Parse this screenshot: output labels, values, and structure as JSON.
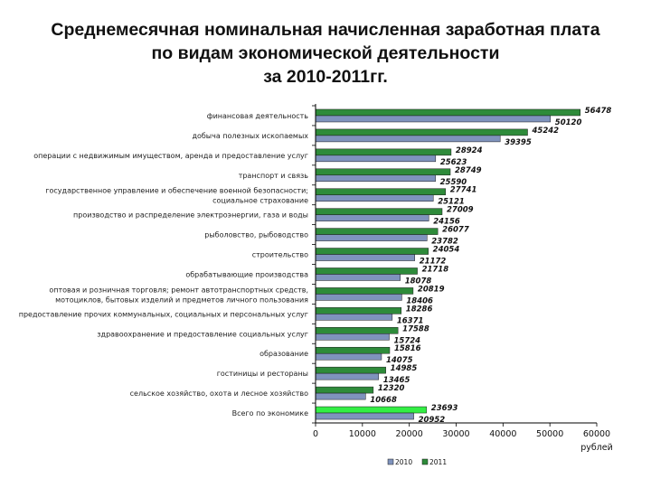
{
  "title_lines": [
    "Среднемесячная номинальная начисленная заработная плата",
    "по видам экономической деятельности",
    "за 2010-2011гг."
  ],
  "chart_data": {
    "type": "bar",
    "orientation": "horizontal",
    "categories": [
      [
        "финансовая деятельность"
      ],
      [
        "добыча полезных ископаемых"
      ],
      [
        "операции с недвижимым имуществом, аренда и предоставление услуг"
      ],
      [
        "транспорт и связь"
      ],
      [
        "государственное управление и обеспечение военной безопасности;",
        "социальное страхование"
      ],
      [
        "производство и распределение электроэнергии, газа и воды"
      ],
      [
        "рыболовство, рыбоводство"
      ],
      [
        "строительство"
      ],
      [
        "обрабатывающие производства"
      ],
      [
        "оптовая и розничная торговля; ремонт автотранспортных средств,",
        "мотоциклов, бытовых изделий и предметов личного пользования"
      ],
      [
        "предоставление прочих коммунальных, социальных и персональных услуг"
      ],
      [
        "здравоохранение и предоставление социальных услуг"
      ],
      [
        "образование"
      ],
      [
        "гостиницы и рестораны"
      ],
      [
        "сельское хозяйство, охота и лесное хозяйство"
      ],
      [
        "Всего по экономике"
      ]
    ],
    "series": [
      {
        "name": "2010",
        "values": [
          50120,
          39395,
          25623,
          25590,
          25121,
          24156,
          23782,
          21172,
          18078,
          18406,
          16371,
          15724,
          14075,
          13465,
          10668,
          20952
        ]
      },
      {
        "name": "2011",
        "values": [
          56478,
          45242,
          28924,
          28749,
          27741,
          27009,
          26077,
          24054,
          21718,
          20819,
          18286,
          17588,
          15816,
          14985,
          12320,
          23693
        ]
      }
    ],
    "x_ticks": [
      "0",
      "10000",
      "20000",
      "30000",
      "40000",
      "50000",
      "60000"
    ],
    "xlim": [
      0,
      60000
    ],
    "x_unit_label": "рублей",
    "legend_position": "bottom",
    "colors": {
      "2010": "#7f93bd",
      "2011": "#2e8b3a",
      "2011_total": "#33ee44",
      "axis": "#000000",
      "gridline": "#c8c8c8"
    }
  }
}
